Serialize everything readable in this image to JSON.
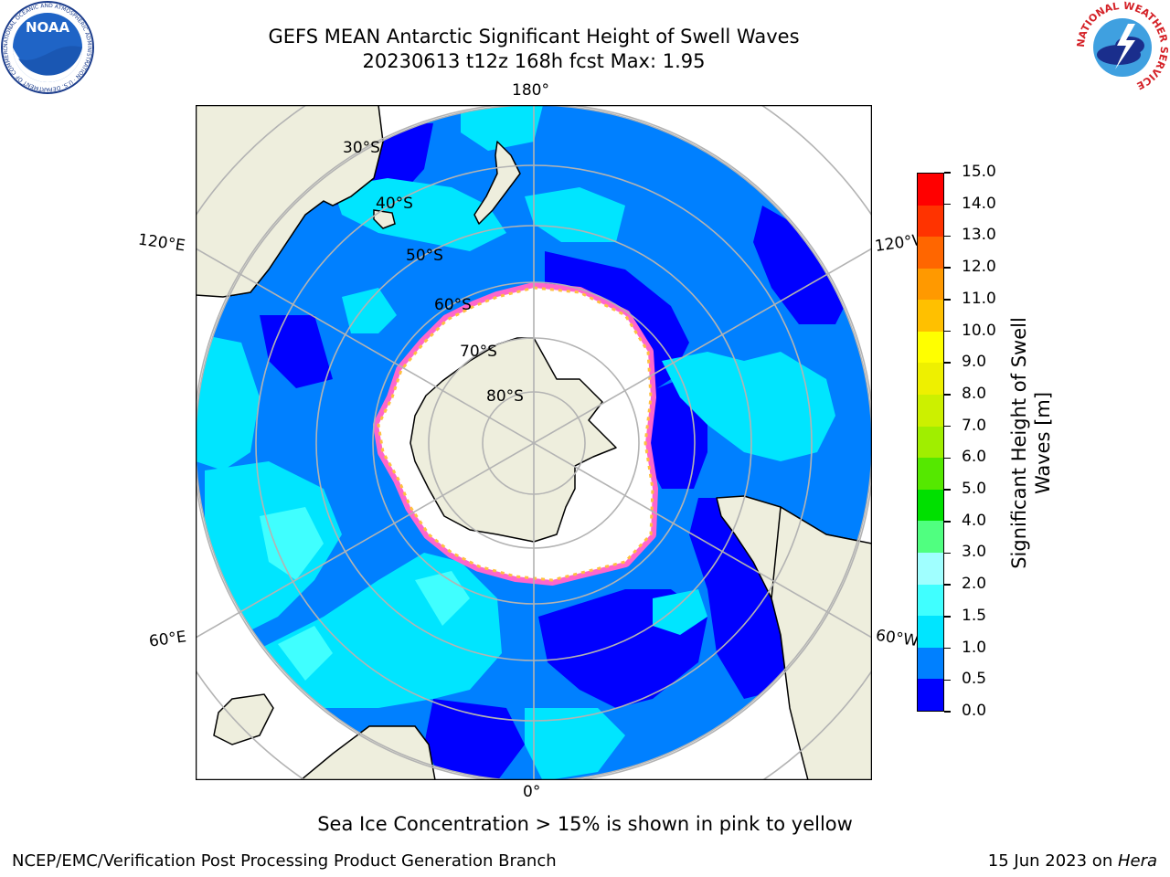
{
  "header": {
    "title_line1": "GEFS MEAN Antarctic Significant Height of Swell Waves",
    "title_line2": "20230613 t12z 168h fcst   Max: 1.95"
  },
  "logos": {
    "noaa_text": "NOAA",
    "noaa_ring_text": "NATIONAL OCEANIC AND ATMOSPHERIC ADMINISTRATION · U.S. DEPARTMENT OF COMMERCE",
    "nws_ring_text": "NATIONAL WEATHER SERVICE"
  },
  "map": {
    "longitude_labels": {
      "top": "180°",
      "bottom": "0°",
      "left_upper": "120°E",
      "right_upper": "120°W",
      "left_lower": "60°E",
      "right_lower": "60°W"
    },
    "latitude_labels": [
      "30°S",
      "40°S",
      "50°S",
      "60°S",
      "70°S",
      "80°S"
    ],
    "colors": {
      "land": "#eeeedd",
      "ice": "#ffffff",
      "grid": "#b3b3b3",
      "coast": "#000000"
    }
  },
  "colorbar": {
    "label_line1": "Significant Height of Swell",
    "label_line2": "Waves [m]",
    "ticks": [
      "0.0",
      "0.5",
      "1.0",
      "1.5",
      "2.0",
      "3.0",
      "4.0",
      "5.0",
      "6.0",
      "7.0",
      "8.0",
      "9.0",
      "10.0",
      "11.0",
      "12.0",
      "13.0",
      "14.0",
      "15.0"
    ],
    "colors": [
      "#0000ff",
      "#0080ff",
      "#00e5ff",
      "#40ffff",
      "#a0ffff",
      "#50ff80",
      "#00e000",
      "#55e800",
      "#a0ee00",
      "#ccf000",
      "#eef000",
      "#ffff00",
      "#ffc000",
      "#ff9900",
      "#ff6600",
      "#ff3300",
      "#ff0000"
    ]
  },
  "note": "Sea Ice Concentration > 15% is shown in pink to yellow",
  "footer": {
    "left": "NCEP/EMC/Verification Post Processing Product Generation Branch",
    "right_prefix": "15 Jun 2023 on ",
    "right_host": "Hera"
  }
}
